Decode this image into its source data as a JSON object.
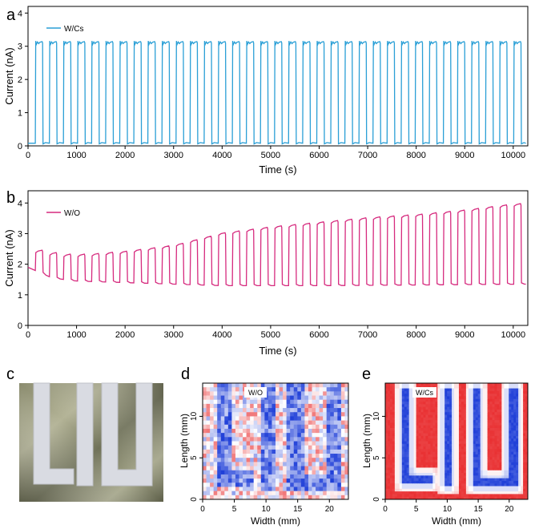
{
  "panels": {
    "a": "a",
    "b": "b",
    "c": "c",
    "d": "d",
    "e": "e"
  },
  "colors": {
    "wcs_line": "#2a9fd6",
    "wo_line": "#d62a7e",
    "heatmap_high": "#1f3fd8",
    "heatmap_low": "#e8282a"
  },
  "chart_data": [
    {
      "type": "line",
      "panel": "a",
      "xlabel": "Time (s)",
      "ylabel": "Current (nA)",
      "xlim": [
        0,
        10300
      ],
      "ylim": [
        0,
        4.2
      ],
      "xticks": [
        0,
        1000,
        2000,
        3000,
        4000,
        5000,
        6000,
        7000,
        8000,
        9000,
        10000
      ],
      "yticks": [
        0,
        1,
        2,
        3,
        4
      ],
      "legend_position": "top-left",
      "series": [
        {
          "name": "W/Cs",
          "description_shape": "square-wave switching",
          "period_s": 290,
          "first_rise_s": 150,
          "on_duration_s": 150,
          "on_level_nA": 3.1,
          "off_level_nA": 0.08,
          "cycles": 35
        }
      ]
    },
    {
      "type": "line",
      "panel": "b",
      "xlabel": "Time (s)",
      "ylabel": "Current (nA)",
      "xlim": [
        0,
        10300
      ],
      "ylim": [
        0,
        4.4
      ],
      "xticks": [
        0,
        1000,
        2000,
        3000,
        4000,
        5000,
        6000,
        7000,
        8000,
        9000,
        10000
      ],
      "yticks": [
        0,
        1,
        2,
        3,
        4
      ],
      "legend_position": "top-left",
      "series": [
        {
          "name": "W/O",
          "period_s": 290,
          "first_rise_s": 150,
          "on_duration_s": 150,
          "cycles": 35,
          "baseline_points": [
            [
              0,
              1.9
            ],
            [
              500,
              1.55
            ],
            [
              1000,
              1.45
            ],
            [
              2000,
              1.4
            ],
            [
              4000,
              1.3
            ],
            [
              6000,
              1.3
            ],
            [
              8000,
              1.32
            ],
            [
              10200,
              1.35
            ]
          ],
          "peak_points": [
            [
              150,
              2.45
            ],
            [
              700,
              2.3
            ],
            [
              1200,
              2.3
            ],
            [
              2000,
              2.4
            ],
            [
              3000,
              2.6
            ],
            [
              4000,
              3.0
            ],
            [
              5000,
              3.2
            ],
            [
              6000,
              3.35
            ],
            [
              7000,
              3.5
            ],
            [
              8000,
              3.6
            ],
            [
              9000,
              3.75
            ],
            [
              10000,
              3.95
            ]
          ]
        }
      ]
    },
    {
      "type": "heatmap",
      "panel": "d",
      "label": "W/O",
      "xlabel": "Width (mm)",
      "ylabel": "Length (mm)",
      "xlim": [
        0,
        23
      ],
      "ylim": [
        0,
        14
      ],
      "xticks": [
        0,
        5,
        10,
        15,
        20
      ],
      "yticks": [
        0,
        5,
        10
      ],
      "pattern": "LIU",
      "noise": "high"
    },
    {
      "type": "heatmap",
      "panel": "e",
      "label": "W/Cs",
      "xlabel": "Width (mm)",
      "ylabel": "Length (mm)",
      "xlim": [
        0,
        23
      ],
      "ylim": [
        0,
        14
      ],
      "xticks": [
        0,
        5,
        10,
        15,
        20
      ],
      "yticks": [
        0,
        5,
        10
      ],
      "pattern": "LIU",
      "noise": "low"
    }
  ]
}
